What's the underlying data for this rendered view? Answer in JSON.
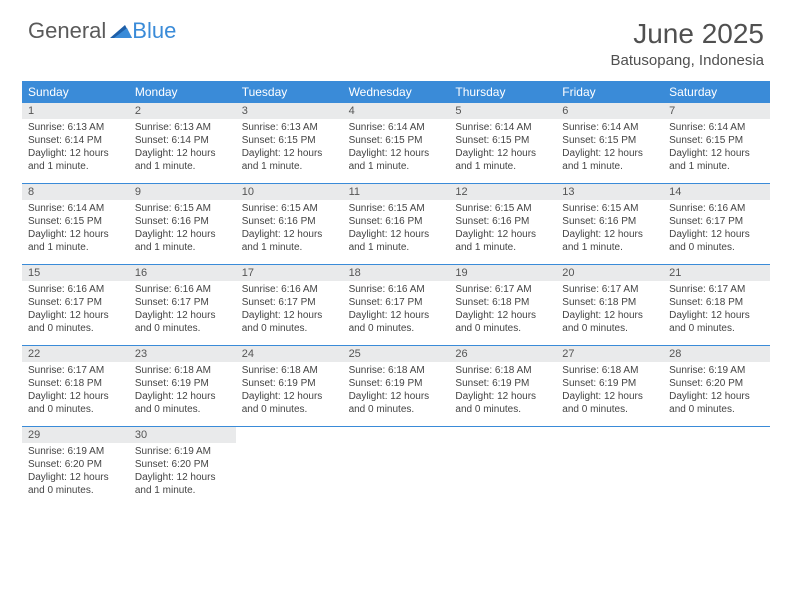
{
  "logo": {
    "part1": "General",
    "part2": "Blue"
  },
  "title": "June 2025",
  "location": "Batusopang, Indonesia",
  "colors": {
    "header_blue": "#3a8bd8",
    "daynum_bg": "#e9eaeb",
    "rule": "#3a8bd8",
    "text": "#444444",
    "title_text": "#505050"
  },
  "weekdays": [
    "Sunday",
    "Monday",
    "Tuesday",
    "Wednesday",
    "Thursday",
    "Friday",
    "Saturday"
  ],
  "weeks": [
    [
      {
        "num": "1",
        "sunrise": "Sunrise: 6:13 AM",
        "sunset": "Sunset: 6:14 PM",
        "daylight": "Daylight: 12 hours and 1 minute."
      },
      {
        "num": "2",
        "sunrise": "Sunrise: 6:13 AM",
        "sunset": "Sunset: 6:14 PM",
        "daylight": "Daylight: 12 hours and 1 minute."
      },
      {
        "num": "3",
        "sunrise": "Sunrise: 6:13 AM",
        "sunset": "Sunset: 6:15 PM",
        "daylight": "Daylight: 12 hours and 1 minute."
      },
      {
        "num": "4",
        "sunrise": "Sunrise: 6:14 AM",
        "sunset": "Sunset: 6:15 PM",
        "daylight": "Daylight: 12 hours and 1 minute."
      },
      {
        "num": "5",
        "sunrise": "Sunrise: 6:14 AM",
        "sunset": "Sunset: 6:15 PM",
        "daylight": "Daylight: 12 hours and 1 minute."
      },
      {
        "num": "6",
        "sunrise": "Sunrise: 6:14 AM",
        "sunset": "Sunset: 6:15 PM",
        "daylight": "Daylight: 12 hours and 1 minute."
      },
      {
        "num": "7",
        "sunrise": "Sunrise: 6:14 AM",
        "sunset": "Sunset: 6:15 PM",
        "daylight": "Daylight: 12 hours and 1 minute."
      }
    ],
    [
      {
        "num": "8",
        "sunrise": "Sunrise: 6:14 AM",
        "sunset": "Sunset: 6:15 PM",
        "daylight": "Daylight: 12 hours and 1 minute."
      },
      {
        "num": "9",
        "sunrise": "Sunrise: 6:15 AM",
        "sunset": "Sunset: 6:16 PM",
        "daylight": "Daylight: 12 hours and 1 minute."
      },
      {
        "num": "10",
        "sunrise": "Sunrise: 6:15 AM",
        "sunset": "Sunset: 6:16 PM",
        "daylight": "Daylight: 12 hours and 1 minute."
      },
      {
        "num": "11",
        "sunrise": "Sunrise: 6:15 AM",
        "sunset": "Sunset: 6:16 PM",
        "daylight": "Daylight: 12 hours and 1 minute."
      },
      {
        "num": "12",
        "sunrise": "Sunrise: 6:15 AM",
        "sunset": "Sunset: 6:16 PM",
        "daylight": "Daylight: 12 hours and 1 minute."
      },
      {
        "num": "13",
        "sunrise": "Sunrise: 6:15 AM",
        "sunset": "Sunset: 6:16 PM",
        "daylight": "Daylight: 12 hours and 1 minute."
      },
      {
        "num": "14",
        "sunrise": "Sunrise: 6:16 AM",
        "sunset": "Sunset: 6:17 PM",
        "daylight": "Daylight: 12 hours and 0 minutes."
      }
    ],
    [
      {
        "num": "15",
        "sunrise": "Sunrise: 6:16 AM",
        "sunset": "Sunset: 6:17 PM",
        "daylight": "Daylight: 12 hours and 0 minutes."
      },
      {
        "num": "16",
        "sunrise": "Sunrise: 6:16 AM",
        "sunset": "Sunset: 6:17 PM",
        "daylight": "Daylight: 12 hours and 0 minutes."
      },
      {
        "num": "17",
        "sunrise": "Sunrise: 6:16 AM",
        "sunset": "Sunset: 6:17 PM",
        "daylight": "Daylight: 12 hours and 0 minutes."
      },
      {
        "num": "18",
        "sunrise": "Sunrise: 6:16 AM",
        "sunset": "Sunset: 6:17 PM",
        "daylight": "Daylight: 12 hours and 0 minutes."
      },
      {
        "num": "19",
        "sunrise": "Sunrise: 6:17 AM",
        "sunset": "Sunset: 6:18 PM",
        "daylight": "Daylight: 12 hours and 0 minutes."
      },
      {
        "num": "20",
        "sunrise": "Sunrise: 6:17 AM",
        "sunset": "Sunset: 6:18 PM",
        "daylight": "Daylight: 12 hours and 0 minutes."
      },
      {
        "num": "21",
        "sunrise": "Sunrise: 6:17 AM",
        "sunset": "Sunset: 6:18 PM",
        "daylight": "Daylight: 12 hours and 0 minutes."
      }
    ],
    [
      {
        "num": "22",
        "sunrise": "Sunrise: 6:17 AM",
        "sunset": "Sunset: 6:18 PM",
        "daylight": "Daylight: 12 hours and 0 minutes."
      },
      {
        "num": "23",
        "sunrise": "Sunrise: 6:18 AM",
        "sunset": "Sunset: 6:19 PM",
        "daylight": "Daylight: 12 hours and 0 minutes."
      },
      {
        "num": "24",
        "sunrise": "Sunrise: 6:18 AM",
        "sunset": "Sunset: 6:19 PM",
        "daylight": "Daylight: 12 hours and 0 minutes."
      },
      {
        "num": "25",
        "sunrise": "Sunrise: 6:18 AM",
        "sunset": "Sunset: 6:19 PM",
        "daylight": "Daylight: 12 hours and 0 minutes."
      },
      {
        "num": "26",
        "sunrise": "Sunrise: 6:18 AM",
        "sunset": "Sunset: 6:19 PM",
        "daylight": "Daylight: 12 hours and 0 minutes."
      },
      {
        "num": "27",
        "sunrise": "Sunrise: 6:18 AM",
        "sunset": "Sunset: 6:19 PM",
        "daylight": "Daylight: 12 hours and 0 minutes."
      },
      {
        "num": "28",
        "sunrise": "Sunrise: 6:19 AM",
        "sunset": "Sunset: 6:20 PM",
        "daylight": "Daylight: 12 hours and 0 minutes."
      }
    ],
    [
      {
        "num": "29",
        "sunrise": "Sunrise: 6:19 AM",
        "sunset": "Sunset: 6:20 PM",
        "daylight": "Daylight: 12 hours and 0 minutes."
      },
      {
        "num": "30",
        "sunrise": "Sunrise: 6:19 AM",
        "sunset": "Sunset: 6:20 PM",
        "daylight": "Daylight: 12 hours and 1 minute."
      },
      {
        "num": "",
        "sunrise": "",
        "sunset": "",
        "daylight": ""
      },
      {
        "num": "",
        "sunrise": "",
        "sunset": "",
        "daylight": ""
      },
      {
        "num": "",
        "sunrise": "",
        "sunset": "",
        "daylight": ""
      },
      {
        "num": "",
        "sunrise": "",
        "sunset": "",
        "daylight": ""
      },
      {
        "num": "",
        "sunrise": "",
        "sunset": "",
        "daylight": ""
      }
    ]
  ]
}
